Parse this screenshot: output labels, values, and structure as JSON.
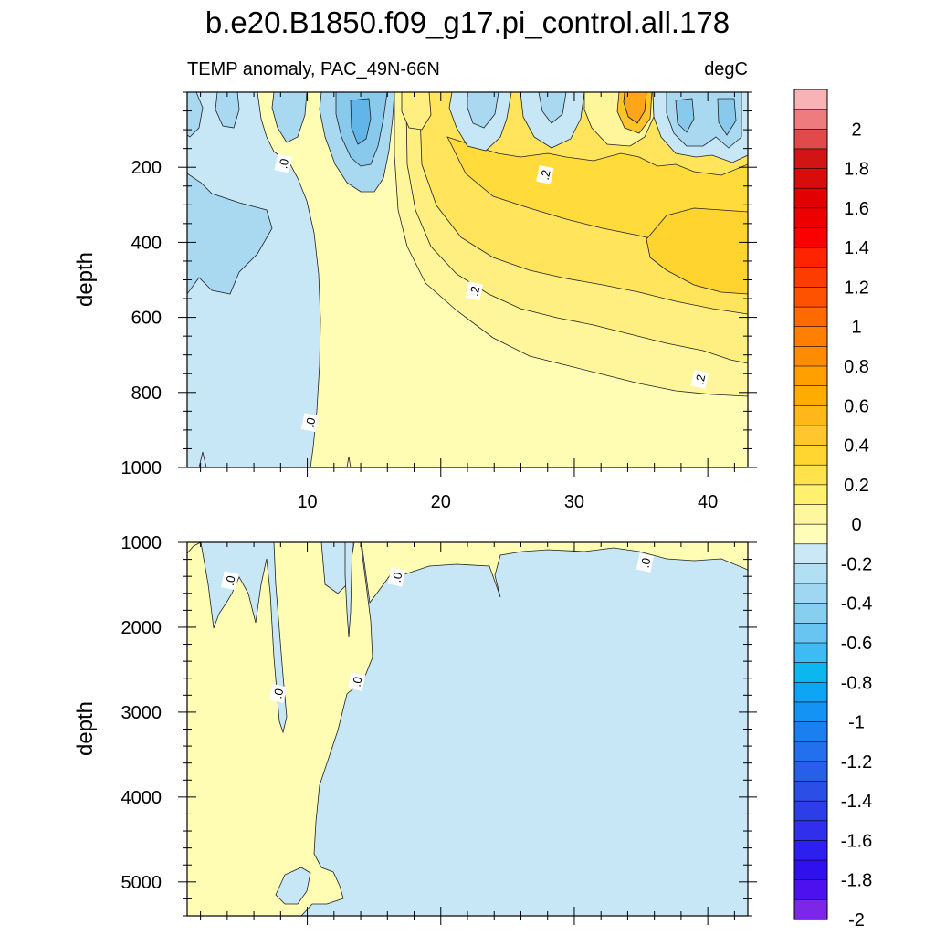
{
  "chart_data": {
    "type": "heatmap",
    "title": "b.e20.B1850.f09_g17.pi_control.all.178",
    "subtitle_left": "TEMP anomaly, PAC_49N-66N",
    "subtitle_right": "degC",
    "x_ticks": [
      "10",
      "20",
      "30",
      "40"
    ],
    "x_tick_values": [
      10,
      20,
      30,
      40
    ],
    "xlim": [
      1,
      43
    ],
    "panels": [
      {
        "name": "upper-ocean",
        "ylabel": "depth",
        "ylim": [
          0,
          1000
        ],
        "y_ticks": [
          "200",
          "400",
          "600",
          "800",
          "1000"
        ],
        "y_tick_values": [
          200,
          400,
          600,
          800,
          1000
        ],
        "contour_labels": [
          {
            "text": ".0",
            "x": 8.2,
            "depth": 190
          },
          {
            "text": ".2",
            "x": 27.8,
            "depth": 220
          },
          {
            "text": ".2",
            "x": 22.5,
            "depth": 530
          },
          {
            "text": ".2",
            "x": 39.4,
            "depth": 765
          },
          {
            "text": ".0",
            "x": 10.2,
            "depth": 880
          }
        ]
      },
      {
        "name": "deep-ocean",
        "ylabel": "depth",
        "ylim": [
          1000,
          5400
        ],
        "y_ticks": [
          "1000",
          "2000",
          "3000",
          "4000",
          "5000"
        ],
        "y_tick_values": [
          1000,
          2000,
          3000,
          4000,
          5000
        ],
        "contour_labels": [
          {
            "text": ".0",
            "x": 4.2,
            "depth": 1450
          },
          {
            "text": ".0",
            "x": 16.7,
            "depth": 1410
          },
          {
            "text": ".0",
            "x": 35.3,
            "depth": 1240
          },
          {
            "text": ".0",
            "x": 7.8,
            "depth": 2780
          },
          {
            "text": ".0",
            "x": 13.7,
            "depth": 2640
          }
        ]
      }
    ],
    "colorbar": {
      "labels": [
        "2",
        "1.8",
        "1.6",
        "1.4",
        "1.2",
        "1",
        "0.8",
        "0.6",
        "0.4",
        "0.2",
        "0",
        "-0.2",
        "-0.4",
        "-0.6",
        "-0.8",
        "-1",
        "-1.2",
        "-1.4",
        "-1.6",
        "-1.8",
        "-2"
      ],
      "colors": [
        "#f7b3b5",
        "#ee7b7e",
        "#e04a4a",
        "#d21414",
        "#d70c0c",
        "#e20000",
        "#ee0000",
        "#fb0000",
        "#ff2400",
        "#ff3c00",
        "#ff5200",
        "#ff6a00",
        "#ff8000",
        "#ff8c00",
        "#ffa000",
        "#ffac00",
        "#ffb818",
        "#ffc72c",
        "#ffd530",
        "#ffe34e",
        "#fff06e",
        "#fff7a0",
        "#fffdb7",
        "#cbe8f6",
        "#b1dff4",
        "#9fd7f2",
        "#88cfef",
        "#68c5f2",
        "#3ebaf4",
        "#0cb6ee",
        "#10a5f4",
        "#1493f4",
        "#1a80f0",
        "#2270ee",
        "#275fe8",
        "#2b4fe6",
        "#2c3ee8",
        "#2f2fec",
        "#2c1fef",
        "#3010ee",
        "#4d10ef",
        "#7c26e8"
      ]
    },
    "colors": {
      "neg_0_0.1": "#c7e6f6",
      "neg_0.1_0.2": "#a9d9f1",
      "neg_0.2_0.3": "#88c9ec",
      "neg_0.3_0.4": "#62b5e8",
      "pos_0_0.05": "#fffcb4",
      "pos_0.05_0.1": "#fff59a",
      "pos_0.1_0.15": "#ffee80",
      "pos_0.15_0.2": "#ffe45c",
      "pos_0.2_0.25": "#ffdb3c",
      "pos_0.25_0.3": "#ffd42e",
      "pos_0.3_0.4": "#ffc42a",
      "pos_0.4_0.6": "#ffa51a"
    }
  }
}
